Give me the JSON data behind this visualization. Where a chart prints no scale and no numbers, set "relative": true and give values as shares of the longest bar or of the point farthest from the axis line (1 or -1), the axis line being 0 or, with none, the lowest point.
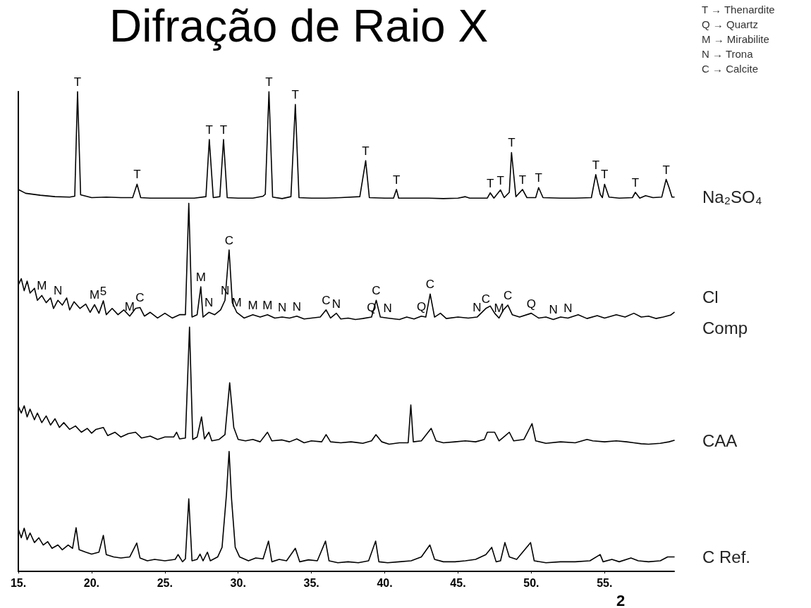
{
  "chart_data": {
    "type": "line",
    "title": "Difração de Raio X",
    "xlabel": "2",
    "relative": true,
    "legend": false,
    "grid": false,
    "marker": "none",
    "line_style": "solid",
    "xlim": [
      15,
      59.75
    ],
    "xticks": [
      {
        "value": 15,
        "label": "15."
      },
      {
        "value": 20,
        "label": "20."
      },
      {
        "value": 25,
        "label": "25."
      },
      {
        "value": 30,
        "label": "30."
      },
      {
        "value": 35,
        "label": "35."
      },
      {
        "value": 40,
        "label": "40."
      },
      {
        "value": 45,
        "label": "45."
      },
      {
        "value": 50,
        "label": "50."
      },
      {
        "value": 55,
        "label": "55."
      }
    ],
    "series": [
      {
        "name": "Na₂SO₄",
        "color": "#000000",
        "x": [
          15,
          15.5,
          16.5,
          17.5,
          18.5,
          18.85,
          19.04,
          19.25,
          20,
          21,
          22,
          22.8,
          23.1,
          23.35,
          24,
          25,
          26,
          27,
          27.8,
          28.03,
          28.3,
          28.75,
          29.0,
          29.25,
          30,
          31,
          31.7,
          31.85,
          32.1,
          32.35,
          33,
          33.6,
          33.9,
          34.15,
          35,
          36,
          37,
          38.3,
          38.7,
          38.95,
          40,
          40.6,
          40.8,
          40.95,
          42,
          43,
          44,
          45,
          45.5,
          45.8,
          47,
          47.2,
          47.45,
          47.9,
          48.15,
          48.5,
          48.65,
          48.95,
          49.4,
          49.7,
          50.3,
          50.5,
          50.8,
          52,
          53,
          54.1,
          54.4,
          54.7,
          54.85,
          55.0,
          55.3,
          56,
          56.9,
          57.1,
          57.4,
          57.8,
          58.3,
          58.9,
          59.2,
          59.4,
          59.6,
          59.75
        ],
        "values": [
          0.796,
          0.788,
          0.784,
          0.781,
          0.78,
          0.782,
          1.0,
          0.785,
          0.779,
          0.78,
          0.779,
          0.779,
          0.807,
          0.779,
          0.778,
          0.778,
          0.778,
          0.778,
          0.781,
          0.9,
          0.779,
          0.781,
          0.9,
          0.779,
          0.778,
          0.778,
          0.782,
          0.786,
          1.0,
          0.78,
          0.777,
          0.781,
          0.973,
          0.779,
          0.778,
          0.778,
          0.779,
          0.781,
          0.856,
          0.779,
          0.778,
          0.778,
          0.796,
          0.778,
          0.778,
          0.778,
          0.777,
          0.778,
          0.781,
          0.778,
          0.778,
          0.789,
          0.778,
          0.795,
          0.779,
          0.79,
          0.873,
          0.781,
          0.796,
          0.779,
          0.779,
          0.8,
          0.779,
          0.778,
          0.778,
          0.779,
          0.827,
          0.786,
          0.779,
          0.807,
          0.78,
          0.778,
          0.779,
          0.79,
          0.778,
          0.783,
          0.779,
          0.78,
          0.817,
          0.8,
          0.78,
          0.78
        ]
      },
      {
        "name": "Cl Comp",
        "color": "#000000",
        "x": [
          15,
          15.2,
          15.4,
          15.6,
          15.8,
          16.1,
          16.3,
          16.6,
          16.9,
          17.2,
          17.4,
          17.7,
          18,
          18.3,
          18.5,
          18.8,
          19.2,
          19.6,
          19.9,
          20.2,
          20.5,
          20.8,
          21.0,
          21.4,
          21.8,
          22.2,
          22.6,
          23.0,
          23.3,
          23.6,
          24.0,
          24.5,
          25.0,
          25.5,
          26.0,
          26.4,
          26.63,
          26.85,
          27.2,
          27.45,
          27.6,
          28.0,
          28.4,
          28.8,
          29.1,
          29.38,
          29.6,
          29.9,
          30.4,
          31,
          31.5,
          32,
          32.5,
          33,
          33.5,
          34,
          34.5,
          35,
          35.6,
          36.0,
          36.3,
          36.7,
          37.0,
          37.5,
          38,
          38.5,
          39.1,
          39.42,
          39.7,
          40.2,
          41,
          41.5,
          42,
          42.5,
          42.8,
          43.1,
          43.4,
          43.8,
          44.2,
          45,
          45.7,
          46.3,
          46.9,
          47.2,
          47.5,
          47.8,
          48.1,
          48.4,
          48.7,
          49.2,
          50.0,
          50.5,
          51,
          51.5,
          52,
          52.5,
          53.2,
          53.8,
          54.5,
          55,
          55.8,
          56.4,
          57,
          57.5,
          58,
          58.5,
          59,
          59.5,
          59.75
        ],
        "values": [
          0.597,
          0.61,
          0.585,
          0.605,
          0.58,
          0.59,
          0.565,
          0.575,
          0.56,
          0.57,
          0.548,
          0.565,
          0.555,
          0.57,
          0.545,
          0.562,
          0.548,
          0.557,
          0.54,
          0.556,
          0.538,
          0.564,
          0.535,
          0.548,
          0.535,
          0.545,
          0.532,
          0.548,
          0.55,
          0.532,
          0.54,
          0.528,
          0.538,
          0.528,
          0.535,
          0.535,
          0.767,
          0.53,
          0.535,
          0.593,
          0.53,
          0.54,
          0.535,
          0.545,
          0.565,
          0.67,
          0.56,
          0.54,
          0.528,
          0.535,
          0.53,
          0.535,
          0.528,
          0.53,
          0.528,
          0.532,
          0.526,
          0.528,
          0.53,
          0.545,
          0.528,
          0.538,
          0.526,
          0.528,
          0.525,
          0.527,
          0.53,
          0.565,
          0.53,
          0.528,
          0.525,
          0.53,
          0.526,
          0.532,
          0.53,
          0.578,
          0.53,
          0.538,
          0.527,
          0.53,
          0.528,
          0.53,
          0.548,
          0.553,
          0.538,
          0.528,
          0.545,
          0.555,
          0.535,
          0.53,
          0.538,
          0.528,
          0.53,
          0.525,
          0.53,
          0.528,
          0.535,
          0.527,
          0.533,
          0.528,
          0.535,
          0.53,
          0.538,
          0.53,
          0.532,
          0.527,
          0.53,
          0.534,
          0.54
        ]
      },
      {
        "name": "CAA",
        "color": "#000000",
        "x": [
          15,
          15.2,
          15.4,
          15.6,
          15.8,
          16.1,
          16.3,
          16.6,
          16.9,
          17.2,
          17.5,
          17.8,
          18.1,
          18.5,
          18.9,
          19.3,
          19.7,
          20.0,
          20.3,
          20.8,
          21.1,
          21.6,
          22,
          22.5,
          23.0,
          23.4,
          24,
          24.5,
          25,
          25.6,
          25.8,
          26.0,
          26.4,
          26.68,
          26.9,
          27.2,
          27.5,
          27.7,
          28.0,
          28.2,
          28.7,
          29.1,
          29.42,
          29.7,
          30.0,
          30.5,
          31,
          31.5,
          32.0,
          32.3,
          33,
          33.5,
          34,
          34.5,
          35,
          35.7,
          36.0,
          36.3,
          37,
          37.7,
          38.5,
          39.1,
          39.4,
          39.8,
          40.3,
          41,
          41.6,
          41.78,
          41.95,
          42.5,
          43.17,
          43.5,
          44,
          44.8,
          45.5,
          46.2,
          46.8,
          47.0,
          47.5,
          47.8,
          48.2,
          48.5,
          48.8,
          49.5,
          50.05,
          50.3,
          51,
          52,
          53,
          53.8,
          54.2,
          55,
          55.8,
          56.5,
          57,
          57.5,
          58,
          58.8,
          59.4,
          59.75
        ],
        "values": [
          0.344,
          0.33,
          0.345,
          0.322,
          0.338,
          0.316,
          0.33,
          0.31,
          0.324,
          0.305,
          0.318,
          0.3,
          0.31,
          0.296,
          0.303,
          0.29,
          0.298,
          0.288,
          0.296,
          0.3,
          0.283,
          0.29,
          0.28,
          0.287,
          0.29,
          0.278,
          0.282,
          0.275,
          0.28,
          0.28,
          0.29,
          0.276,
          0.278,
          0.509,
          0.275,
          0.28,
          0.322,
          0.276,
          0.29,
          0.272,
          0.275,
          0.285,
          0.393,
          0.3,
          0.275,
          0.272,
          0.275,
          0.27,
          0.29,
          0.272,
          0.274,
          0.27,
          0.276,
          0.268,
          0.272,
          0.27,
          0.285,
          0.27,
          0.268,
          0.27,
          0.267,
          0.272,
          0.285,
          0.27,
          0.265,
          0.268,
          0.268,
          0.347,
          0.27,
          0.272,
          0.298,
          0.272,
          0.268,
          0.27,
          0.272,
          0.27,
          0.275,
          0.29,
          0.29,
          0.272,
          0.282,
          0.29,
          0.272,
          0.275,
          0.308,
          0.272,
          0.267,
          0.27,
          0.268,
          0.275,
          0.272,
          0.27,
          0.272,
          0.27,
          0.268,
          0.266,
          0.265,
          0.267,
          0.27,
          0.273
        ]
      },
      {
        "name": "C Ref.",
        "color": "#000000",
        "x": [
          15,
          15.2,
          15.4,
          15.6,
          15.8,
          16.1,
          16.4,
          16.7,
          17,
          17.3,
          17.7,
          18.0,
          18.4,
          18.7,
          18.94,
          19.15,
          19.6,
          20.0,
          20.5,
          20.8,
          21.0,
          21.5,
          22,
          22.6,
          23.08,
          23.3,
          23.8,
          24.3,
          25,
          25.7,
          25.9,
          26.2,
          26.4,
          26.63,
          26.85,
          27.2,
          27.4,
          27.6,
          27.9,
          28.1,
          28.6,
          28.9,
          29.2,
          29.38,
          29.55,
          29.8,
          30.1,
          30.7,
          31.2,
          31.7,
          32.07,
          32.3,
          32.8,
          33.3,
          33.9,
          34.2,
          34.8,
          35.4,
          35.96,
          36.2,
          36.8,
          37.5,
          38.2,
          38.9,
          39.38,
          39.6,
          40.2,
          41,
          41.8,
          42.5,
          43.08,
          43.4,
          44,
          44.8,
          45.5,
          46.2,
          46.9,
          47.3,
          47.6,
          47.9,
          48.2,
          48.5,
          49.0,
          49.95,
          50.2,
          51,
          52,
          53,
          54,
          54.7,
          54.9,
          55.5,
          56,
          56.8,
          57.3,
          58,
          58.8,
          59.3,
          59.75
        ],
        "values": [
          0.088,
          0.07,
          0.09,
          0.066,
          0.08,
          0.06,
          0.07,
          0.055,
          0.062,
          0.048,
          0.055,
          0.045,
          0.055,
          0.048,
          0.091,
          0.045,
          0.04,
          0.036,
          0.04,
          0.075,
          0.035,
          0.03,
          0.028,
          0.03,
          0.059,
          0.028,
          0.022,
          0.025,
          0.022,
          0.025,
          0.035,
          0.02,
          0.026,
          0.151,
          0.022,
          0.025,
          0.036,
          0.022,
          0.04,
          0.022,
          0.03,
          0.05,
          0.16,
          0.25,
          0.15,
          0.05,
          0.03,
          0.022,
          0.028,
          0.026,
          0.063,
          0.02,
          0.025,
          0.022,
          0.048,
          0.02,
          0.024,
          0.022,
          0.063,
          0.022,
          0.018,
          0.02,
          0.018,
          0.022,
          0.063,
          0.02,
          0.018,
          0.02,
          0.022,
          0.03,
          0.055,
          0.025,
          0.02,
          0.02,
          0.022,
          0.025,
          0.035,
          0.05,
          0.02,
          0.022,
          0.06,
          0.03,
          0.025,
          0.06,
          0.022,
          0.018,
          0.02,
          0.02,
          0.022,
          0.035,
          0.02,
          0.025,
          0.02,
          0.028,
          0.022,
          0.02,
          0.022,
          0.03,
          0.03
        ]
      }
    ],
    "annotations": [
      "T → Thenardite",
      "Q → Quartz",
      "M → Mirabilite",
      "N → Trona",
      "C → Calcite",
      {
        "text": "T",
        "x": 19.04,
        "y": 1.0
      },
      {
        "text": "T",
        "x": 23.1,
        "y": 0.807
      },
      {
        "text": "T",
        "x": 28.03,
        "y": 0.9
      },
      {
        "text": "T",
        "x": 29.0,
        "y": 0.9
      },
      {
        "text": "T",
        "x": 32.1,
        "y": 1.0
      },
      {
        "text": "T",
        "x": 33.9,
        "y": 0.973
      },
      {
        "text": "T",
        "x": 38.7,
        "y": 0.856
      },
      {
        "text": "T",
        "x": 40.8,
        "y": 0.796
      },
      {
        "text": "T",
        "x": 47.2,
        "y": 0.789
      },
      {
        "text": "T",
        "x": 47.9,
        "y": 0.795
      },
      {
        "text": "T",
        "x": 48.65,
        "y": 0.873
      },
      {
        "text": "T",
        "x": 49.4,
        "y": 0.796
      },
      {
        "text": "T",
        "x": 50.5,
        "y": 0.8
      },
      {
        "text": "T",
        "x": 54.4,
        "y": 0.827
      },
      {
        "text": "T",
        "x": 55.0,
        "y": 0.807
      },
      {
        "text": "T",
        "x": 57.1,
        "y": 0.79
      },
      {
        "text": "T",
        "x": 59.2,
        "y": 0.817
      },
      {
        "text": "M",
        "x": 16.6,
        "y": 0.575
      },
      {
        "text": "N",
        "x": 17.7,
        "y": 0.565
      },
      {
        "text": "M",
        "x": 20.2,
        "y": 0.556
      },
      {
        "text": "5",
        "x": 20.8,
        "y": 0.564
      },
      {
        "text": "M",
        "x": 22.6,
        "y": 0.532
      },
      {
        "text": "C",
        "x": 23.3,
        "y": 0.55
      },
      {
        "text": "M",
        "x": 27.45,
        "y": 0.593
      },
      {
        "text": "N",
        "x": 28.0,
        "y": 0.54
      },
      {
        "text": "N",
        "x": 29.1,
        "y": 0.565
      },
      {
        "text": "C",
        "x": 29.38,
        "y": 0.67
      },
      {
        "text": "M",
        "x": 29.9,
        "y": 0.54
      },
      {
        "text": "M",
        "x": 31,
        "y": 0.535
      },
      {
        "text": "M",
        "x": 32,
        "y": 0.535
      },
      {
        "text": "N",
        "x": 33,
        "y": 0.53
      },
      {
        "text": "N",
        "x": 34,
        "y": 0.532
      },
      {
        "text": "C",
        "x": 36.0,
        "y": 0.545
      },
      {
        "text": "N",
        "x": 36.7,
        "y": 0.538
      },
      {
        "text": "Q",
        "x": 39.1,
        "y": 0.53
      },
      {
        "text": "C",
        "x": 39.42,
        "y": 0.565
      },
      {
        "text": "N",
        "x": 40.2,
        "y": 0.528
      },
      {
        "text": "Q",
        "x": 42.5,
        "y": 0.532
      },
      {
        "text": "C",
        "x": 43.1,
        "y": 0.578
      },
      {
        "text": "N",
        "x": 46.3,
        "y": 0.53
      },
      {
        "text": "C",
        "x": 46.9,
        "y": 0.548
      },
      {
        "text": "M",
        "x": 47.8,
        "y": 0.528
      },
      {
        "text": "C",
        "x": 48.4,
        "y": 0.555
      },
      {
        "text": "Q",
        "x": 50.0,
        "y": 0.538
      },
      {
        "text": "N",
        "x": 51.5,
        "y": 0.525
      },
      {
        "text": "N",
        "x": 52.5,
        "y": 0.528
      }
    ]
  }
}
